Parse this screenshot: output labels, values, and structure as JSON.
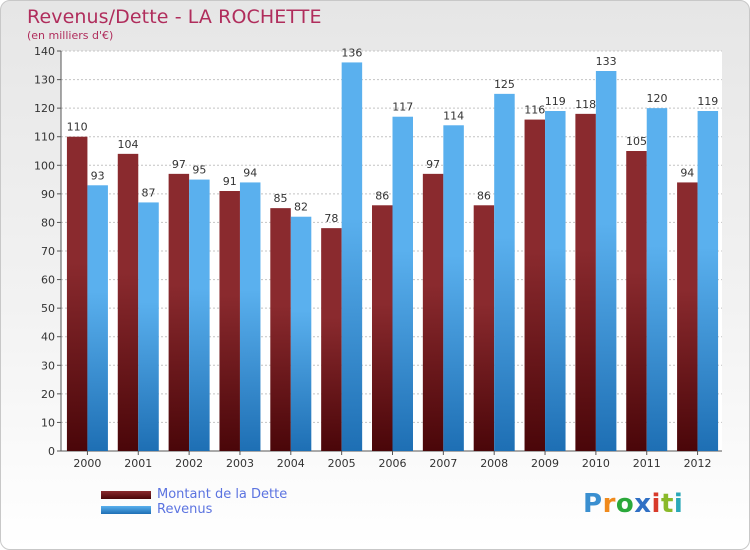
{
  "chart_data": {
    "type": "bar",
    "title": "Revenus/Dette - LA ROCHETTE",
    "subtitle": "(en milliers d'€)",
    "categories": [
      "2000",
      "2001",
      "2002",
      "2003",
      "2004",
      "2005",
      "2006",
      "2007",
      "2008",
      "2009",
      "2010",
      "2011",
      "2012"
    ],
    "series": [
      {
        "name": "Montant de la Dette",
        "color": "#7a1c1f",
        "values": [
          110,
          104,
          97,
          91,
          85,
          78,
          86,
          97,
          86,
          116,
          118,
          105,
          94
        ]
      },
      {
        "name": "Revenus",
        "color": "#3d98dc",
        "values": [
          93,
          87,
          95,
          94,
          82,
          136,
          117,
          114,
          125,
          119,
          133,
          120,
          119
        ]
      }
    ],
    "ylim": [
      0,
      140
    ],
    "yticks": [
      0,
      10,
      20,
      30,
      40,
      50,
      60,
      70,
      80,
      90,
      100,
      110,
      120,
      130,
      140
    ],
    "grid": true,
    "legend": "bottom-left"
  },
  "logo": {
    "letters": [
      {
        "ch": "P",
        "color": "#3a8fd0"
      },
      {
        "ch": "r",
        "color": "#f08a1c"
      },
      {
        "ch": "o",
        "color": "#2aa83a"
      },
      {
        "ch": "x",
        "color": "#2f6fc4"
      },
      {
        "ch": "i",
        "color": "#d83a2a"
      },
      {
        "ch": "t",
        "color": "#8ab92a"
      },
      {
        "ch": "i",
        "color": "#2aa8b8"
      }
    ]
  }
}
